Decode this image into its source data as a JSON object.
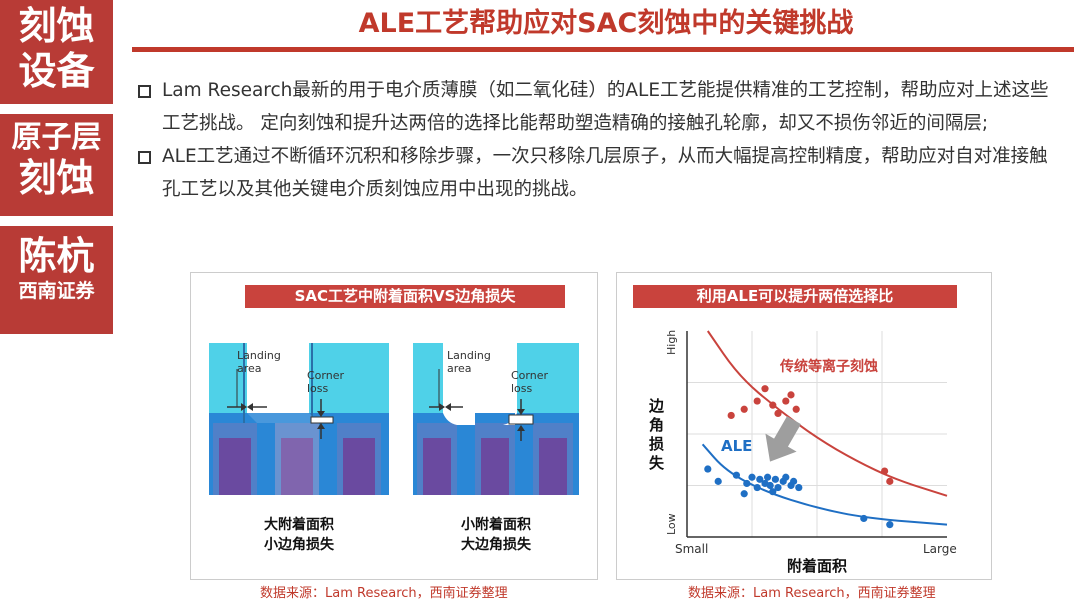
{
  "sidebar": {
    "block1": {
      "line1": "刻蚀",
      "line2": "设备"
    },
    "block2": {
      "line1": "原子层",
      "line2": "刻蚀"
    },
    "block3": {
      "line1": "陈杭",
      "line2": "西南证券"
    }
  },
  "title": "ALE工艺帮助应对SAC刻蚀中的关键挑战",
  "bullets": [
    "Lam Research最新的用于电介质薄膜（如二氧化硅）的ALE工艺能提供精准的工艺控制，帮助应对上述这些工艺挑战。 定向刻蚀和提升达两倍的选择比能帮助塑造精确的接触孔轮廓，却又不损伤邻近的间隔层;",
    "ALE工艺通过不断循环沉积和移除步骤，一次只移除几层原子，从而大幅提高控制精度，帮助应对自对准接触孔工艺以及其他关键电介质刻蚀应用中出现的挑战。"
  ],
  "panel_left": {
    "title": "SAC工艺中附着面积VS边角损失",
    "landing_label_line1": "Landing",
    "landing_label_line2": "area",
    "corner_label_line1": "Corner",
    "corner_label_line2": "loss",
    "caption_left_line1": "大附着面积",
    "caption_left_line2": "小边角损失",
    "caption_right_line1": "小附着面积",
    "caption_right_line2": "大边角损失"
  },
  "panel_right": {
    "title": "利用ALE可以提升两倍选择比",
    "y_axis_title": "边角损失",
    "x_axis_title": "附着面积",
    "y_high": "High",
    "y_low": "Low",
    "x_small": "Small",
    "x_large": "Large",
    "label_conventional": "传统等离子刻蚀",
    "label_ale": "ALE"
  },
  "source_left": "数据来源：Lam Research，西南证券整理",
  "source_right": "数据来源：Lam Research，西南证券整理",
  "colors": {
    "accent_red": "#c0392b",
    "ale_blue": "#1f6fc4",
    "plasma_red": "#c9433d",
    "cyan": "#4fd1e8",
    "gate_purple": "#6a4aa0"
  },
  "chart_data": {
    "type": "scatter",
    "xlabel": "附着面积",
    "ylabel": "边角损失",
    "x_ticks": [
      "Small",
      "Large"
    ],
    "y_ticks": [
      "Low",
      "High"
    ],
    "grid": true,
    "series": [
      {
        "name": "传统等离子刻蚀",
        "color": "#c9433d",
        "points": [
          [
            0.17,
            0.59
          ],
          [
            0.22,
            0.62
          ],
          [
            0.27,
            0.66
          ],
          [
            0.3,
            0.72
          ],
          [
            0.33,
            0.64
          ],
          [
            0.35,
            0.6
          ],
          [
            0.38,
            0.66
          ],
          [
            0.4,
            0.69
          ],
          [
            0.42,
            0.62
          ],
          [
            0.76,
            0.32
          ],
          [
            0.78,
            0.27
          ]
        ],
        "trend": [
          [
            0.08,
            1.0
          ],
          [
            0.2,
            0.78
          ],
          [
            0.35,
            0.62
          ],
          [
            0.5,
            0.48
          ],
          [
            0.65,
            0.37
          ],
          [
            0.8,
            0.28
          ],
          [
            1.0,
            0.2
          ]
        ]
      },
      {
        "name": "ALE",
        "color": "#1f6fc4",
        "points": [
          [
            0.08,
            0.33
          ],
          [
            0.12,
            0.27
          ],
          [
            0.19,
            0.3
          ],
          [
            0.23,
            0.26
          ],
          [
            0.25,
            0.29
          ],
          [
            0.27,
            0.24
          ],
          [
            0.28,
            0.28
          ],
          [
            0.3,
            0.26
          ],
          [
            0.31,
            0.29
          ],
          [
            0.32,
            0.25
          ],
          [
            0.34,
            0.28
          ],
          [
            0.35,
            0.24
          ],
          [
            0.37,
            0.27
          ],
          [
            0.38,
            0.29
          ],
          [
            0.4,
            0.25
          ],
          [
            0.41,
            0.27
          ],
          [
            0.43,
            0.24
          ],
          [
            0.22,
            0.21
          ],
          [
            0.33,
            0.22
          ],
          [
            0.68,
            0.09
          ],
          [
            0.78,
            0.06
          ]
        ],
        "trend": [
          [
            0.06,
            0.45
          ],
          [
            0.15,
            0.32
          ],
          [
            0.3,
            0.22
          ],
          [
            0.5,
            0.14
          ],
          [
            0.7,
            0.09
          ],
          [
            1.0,
            0.06
          ]
        ]
      }
    ]
  }
}
